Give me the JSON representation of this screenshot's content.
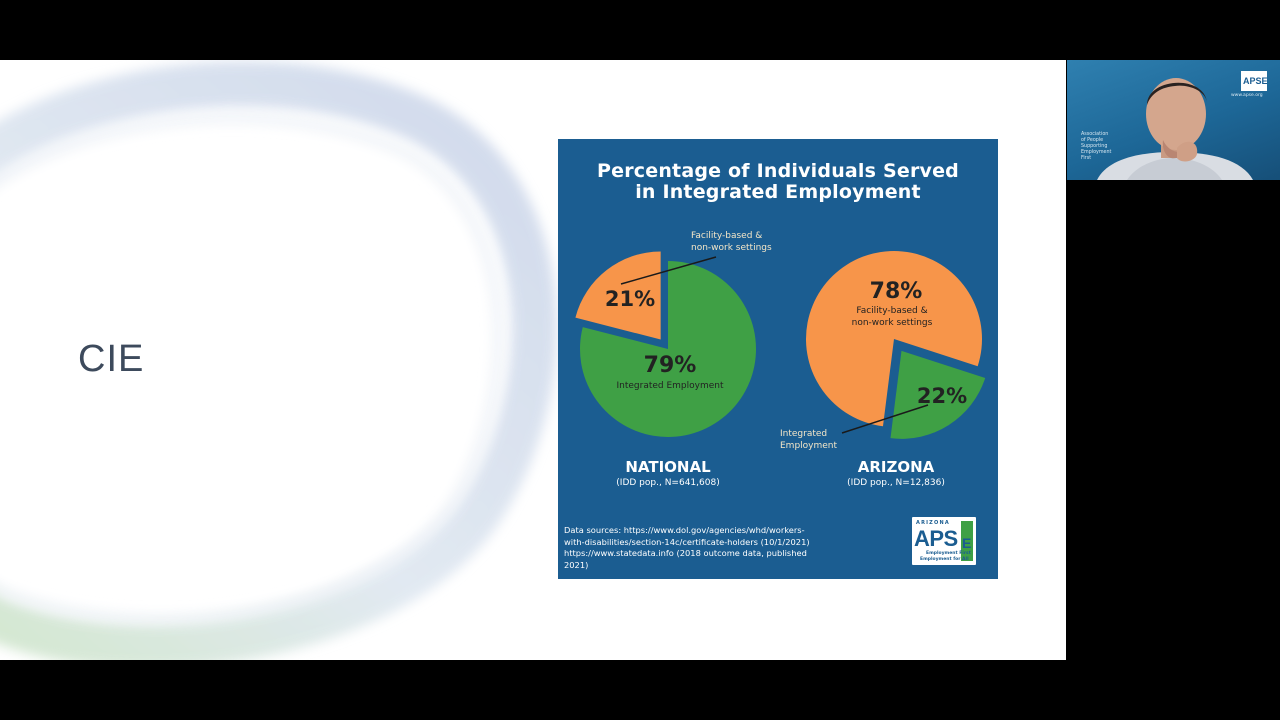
{
  "slide": {
    "title": "CIE"
  },
  "infographic": {
    "title_line1": "Percentage of Individuals Served",
    "title_line2": "in Integrated Employment",
    "sources": {
      "line1": "Data sources: https://www.dol.gov/agencies/whd/workers-",
      "line2": "with-disabilities/section-14c/certificate-holders (10/1/2021)",
      "line3": "https://www.statedata.info (2018 outcome data, published",
      "line4": "2021)"
    },
    "logo": {
      "state": "ARIZONA",
      "word": "APS",
      "letter": "E",
      "tagline1": "Employment First",
      "tagline2": "Employment for All"
    }
  },
  "chart_data": [
    {
      "type": "pie",
      "region": "NATIONAL",
      "population": "(IDD pop., N=641,608)",
      "slices": [
        {
          "label": "Integrated Employment",
          "value": 79,
          "display": "79%",
          "color": "#3fa045"
        },
        {
          "label_line1": "Facility-based &",
          "label_line2": "non-work settings",
          "value": 21,
          "display": "21%",
          "color": "#f7954a"
        }
      ]
    },
    {
      "type": "pie",
      "region": "ARIZONA",
      "population": "(IDD pop., N=12,836)",
      "slices": [
        {
          "label_line1": "Facility-based &",
          "label_line2": "non-work settings",
          "value": 78,
          "display": "78%",
          "color": "#f7954a"
        },
        {
          "label_line1": "Integrated",
          "label_line2": "Employment",
          "value": 22,
          "display": "22%",
          "color": "#3fa045"
        }
      ]
    }
  ],
  "webcam": {
    "org_text": [
      "Association",
      "of People",
      "Supporting",
      "Employment",
      "First"
    ],
    "logo_text": "APSE",
    "url": "www.apse.org"
  }
}
